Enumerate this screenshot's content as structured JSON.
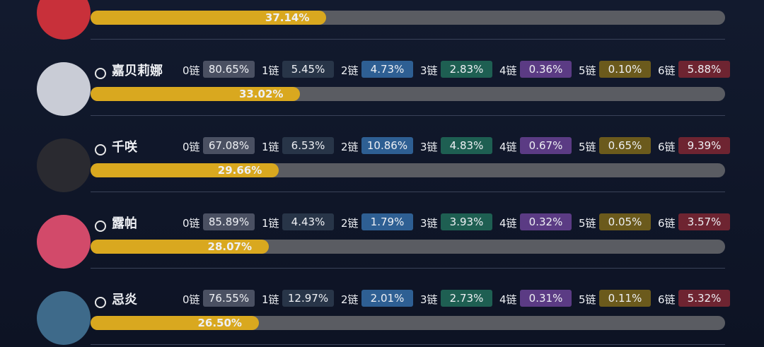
{
  "chain_labels": [
    "0链",
    "1链",
    "2链",
    "3链",
    "4链",
    "5链",
    "6链"
  ],
  "rows": [
    {
      "usage": 37.14,
      "usage_label": "37.14%"
    },
    {
      "name": "嘉贝莉娜",
      "usage": 33.02,
      "usage_label": "33.02%",
      "chains": [
        "80.65%",
        "5.45%",
        "4.73%",
        "2.83%",
        "0.36%",
        "0.10%",
        "5.88%"
      ]
    },
    {
      "name": "千咲",
      "usage": 29.66,
      "usage_label": "29.66%",
      "chains": [
        "67.08%",
        "6.53%",
        "10.86%",
        "4.83%",
        "0.67%",
        "0.65%",
        "9.39%"
      ]
    },
    {
      "name": "露帕",
      "usage": 28.07,
      "usage_label": "28.07%",
      "chains": [
        "85.89%",
        "4.43%",
        "1.79%",
        "3.93%",
        "0.32%",
        "0.05%",
        "3.57%"
      ]
    },
    {
      "name": "忌炎",
      "usage": 26.5,
      "usage_label": "26.50%",
      "chains": [
        "76.55%",
        "12.97%",
        "2.01%",
        "2.73%",
        "0.31%",
        "0.11%",
        "5.32%"
      ]
    }
  ]
}
